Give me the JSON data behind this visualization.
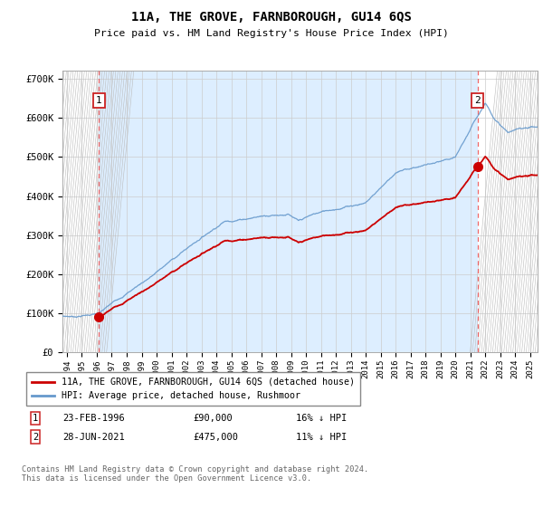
{
  "title": "11A, THE GROVE, FARNBOROUGH, GU14 6QS",
  "subtitle": "Price paid vs. HM Land Registry's House Price Index (HPI)",
  "ylim": [
    0,
    720000
  ],
  "yticks": [
    0,
    100000,
    200000,
    300000,
    400000,
    500000,
    600000,
    700000
  ],
  "ytick_labels": [
    "£0",
    "£100K",
    "£200K",
    "£300K",
    "£400K",
    "£500K",
    "£600K",
    "£700K"
  ],
  "xmin": 1993.7,
  "xmax": 2025.5,
  "transaction1_date": 1996.15,
  "transaction1_price": 90000,
  "transaction2_date": 2021.49,
  "transaction2_price": 475000,
  "red_line_color": "#cc0000",
  "blue_line_color": "#6699cc",
  "bg_plot_color": "#ddeeff",
  "grid_color": "#cccccc",
  "legend_label1": "11A, THE GROVE, FARNBOROUGH, GU14 6QS (detached house)",
  "legend_label2": "HPI: Average price, detached house, Rushmoor",
  "transaction1_text": "23-FEB-1996",
  "transaction1_amount": "£90,000",
  "transaction1_hpi": "16% ↓ HPI",
  "transaction2_text": "28-JUN-2021",
  "transaction2_amount": "£475,000",
  "transaction2_hpi": "11% ↓ HPI",
  "footer": "Contains HM Land Registry data © Crown copyright and database right 2024.\nThis data is licensed under the Open Government Licence v3.0."
}
